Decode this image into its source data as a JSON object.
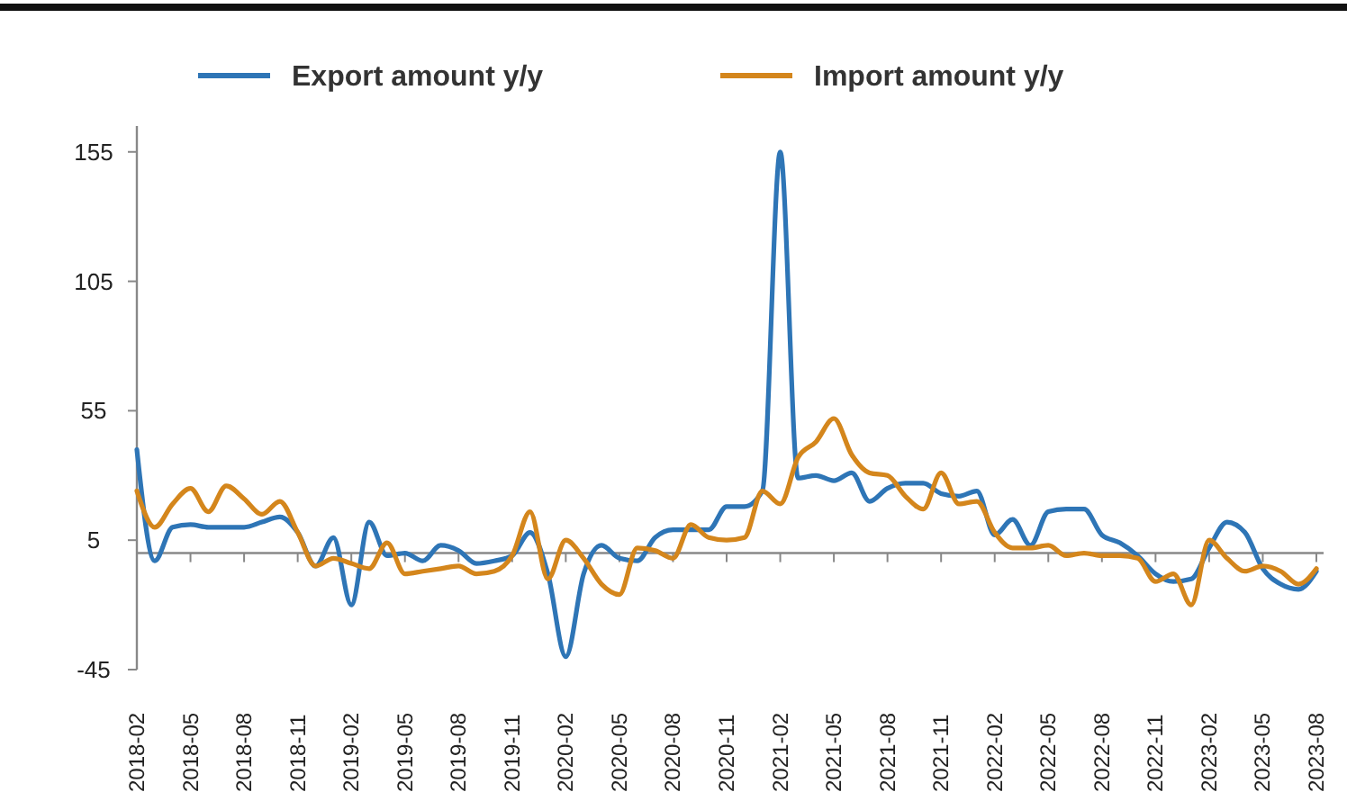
{
  "chart_data": {
    "type": "line",
    "categories": [
      "2018-02",
      null,
      null,
      "2018-05",
      null,
      null,
      "2018-08",
      null,
      null,
      "2018-11",
      null,
      null,
      "2019-02",
      null,
      null,
      "2019-05",
      null,
      null,
      "2019-08",
      null,
      null,
      "2019-11",
      null,
      null,
      "2020-02",
      null,
      null,
      "2020-05",
      null,
      null,
      "2020-08",
      null,
      null,
      "2020-11",
      null,
      null,
      "2021-02",
      null,
      null,
      "2021-05",
      null,
      null,
      "2021-08",
      null,
      null,
      "2021-11",
      null,
      null,
      "2022-02",
      null,
      null,
      "2022-05",
      null,
      null,
      "2022-08",
      null,
      null,
      "2022-11",
      null,
      null,
      "2023-02",
      null,
      null,
      "2023-05",
      null,
      null,
      "2023-08"
    ],
    "series": [
      {
        "name": "Export amount y/y",
        "color": "#2e75b6",
        "values": [
          40,
          -3,
          10,
          11,
          10,
          10,
          10,
          12,
          14,
          8,
          -5,
          6,
          -20,
          12,
          -1,
          0,
          -3,
          3,
          1,
          -4,
          -3,
          -1,
          8,
          -8,
          -40,
          -8,
          3,
          -2,
          -3,
          6,
          9,
          9,
          9,
          18,
          18,
          24,
          155,
          29,
          30,
          28,
          31,
          20,
          25,
          27,
          27,
          23,
          22,
          24,
          7,
          13,
          3,
          16,
          17,
          17,
          7,
          4,
          -1,
          -8,
          -11,
          -10,
          2,
          12,
          8,
          -6,
          -12,
          -14,
          -7
        ]
      },
      {
        "name": "Import amount y/y",
        "color": "#d4861c",
        "values": [
          24,
          10,
          19,
          25,
          16,
          26,
          21,
          15,
          20,
          8,
          -5,
          -2,
          -4,
          -6,
          4,
          -8,
          -7,
          -6,
          -5,
          -8,
          -7,
          -1,
          16,
          -10,
          5,
          -2,
          -12,
          -16,
          2,
          1,
          -2,
          11,
          6,
          5,
          6,
          24,
          19,
          37,
          43,
          52,
          38,
          31,
          30,
          22,
          17,
          31,
          19,
          20,
          8,
          2,
          2,
          3,
          -1,
          0,
          -1,
          -1,
          -2,
          -11,
          -8,
          -20,
          5,
          -2,
          -7,
          -5,
          -7,
          -12,
          -6
        ]
      }
    ],
    "ylim": [
      -45,
      165
    ],
    "yticks": [
      -45,
      5,
      55,
      105,
      155
    ],
    "grid": false,
    "legend": "top",
    "marker": "none",
    "line_style": "solid"
  }
}
